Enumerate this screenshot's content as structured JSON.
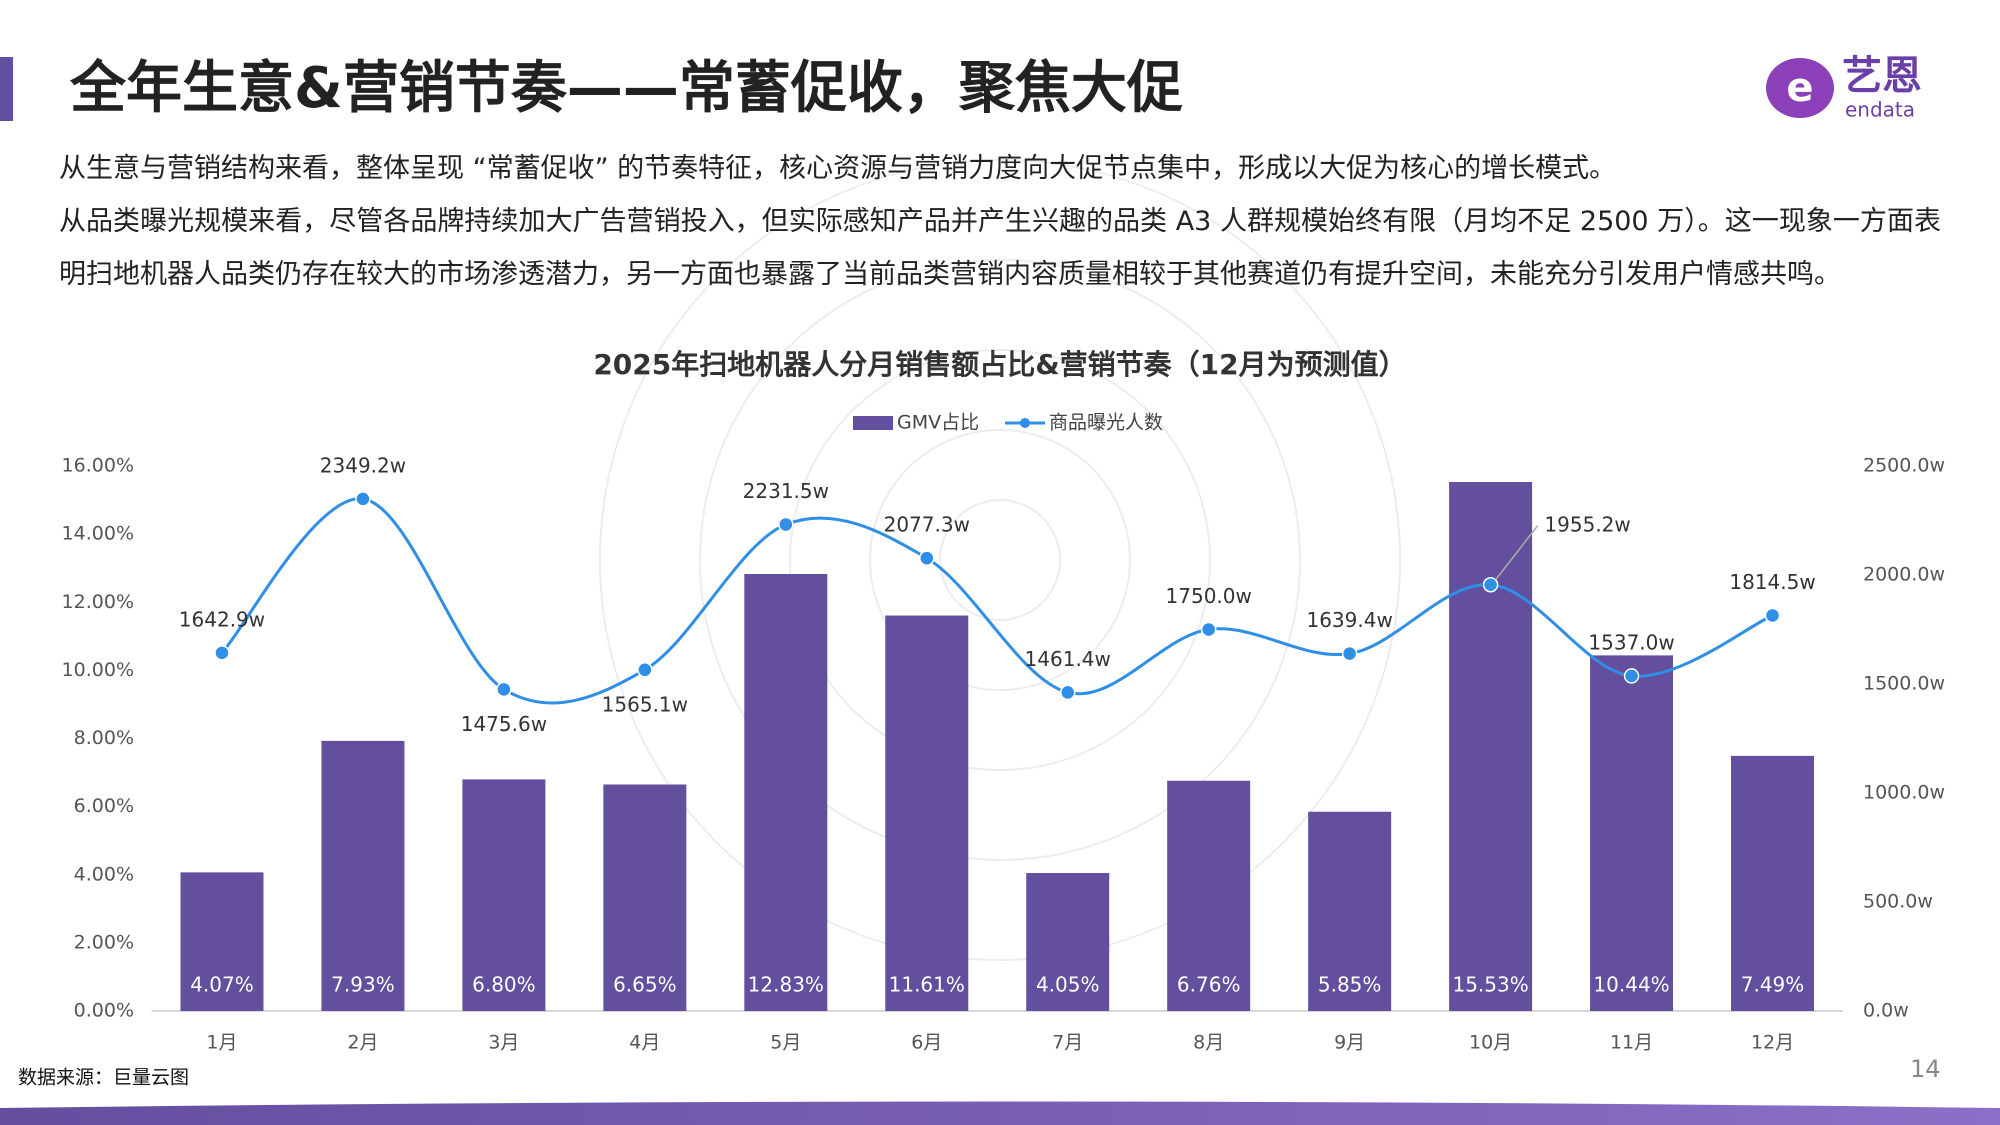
{
  "header": {
    "title": "全年生意&营销节奏——常蓄促收，聚焦大促",
    "logo_text": "艺恩",
    "logo_sub": "endata"
  },
  "paragraphs": [
    "从生意与营销结构来看，整体呈现 “常蓄促收” 的节奏特征，核心资源与营销力度向大促节点集中，形成以大促为核心的增长模式。",
    "从品类曝光规模来看，尽管各品牌持续加大广告营销投入，但实际感知产品并产生兴趣的品类 A3 人群规模始终有限（月均不足 2500 万）。这一现象一方面表明扫地机器人品类仍存在较大的市场渗透潜力，另一方面也暴露了当前品类营销内容质量相较于其他赛道仍有提升空间，未能充分引发用户情感共鸣。"
  ],
  "chart_data": {
    "type": "combo",
    "title": "2025年扫地机器人分月销售额占比&营销节奏（12月为预测值）",
    "categories": [
      "1月",
      "2月",
      "3月",
      "4月",
      "5月",
      "6月",
      "7月",
      "8月",
      "9月",
      "10月",
      "11月",
      "12月"
    ],
    "series": [
      {
        "name": "GMV占比",
        "type": "bar",
        "color": "#644e9e",
        "values": [
          4.07,
          7.93,
          6.8,
          6.65,
          12.83,
          11.61,
          4.05,
          6.76,
          5.85,
          15.53,
          10.44,
          7.49
        ],
        "value_labels": [
          "4.07%",
          "7.93%",
          "6.80%",
          "6.65%",
          "12.83%",
          "11.61%",
          "4.05%",
          "6.76%",
          "5.85%",
          "15.53%",
          "10.44%",
          "7.49%"
        ]
      },
      {
        "name": "商品曝光人数",
        "type": "line",
        "axis": "y2",
        "color": "#2f8ee6",
        "values": [
          1642.9,
          2349.2,
          1475.6,
          1565.1,
          2231.5,
          2077.3,
          1461.4,
          1750.0,
          1639.4,
          1955.2,
          1537.0,
          1814.5
        ],
        "value_labels": [
          "1642.9w",
          "2349.2w",
          "1475.6w",
          "1565.1w",
          "2231.5w",
          "2077.3w",
          "1461.4w",
          "1750.0w",
          "1639.4w",
          "1955.2w",
          "1537.0w",
          "1814.5w"
        ]
      }
    ],
    "ylim": [
      0,
      16
    ],
    "yticks": [
      {
        "value": 0,
        "label": "0.00%"
      },
      {
        "value": 2,
        "label": "2.00%"
      },
      {
        "value": 4,
        "label": "4.00%"
      },
      {
        "value": 6,
        "label": "6.00%"
      },
      {
        "value": 8,
        "label": "8.00%"
      },
      {
        "value": 10,
        "label": "10.00%"
      },
      {
        "value": 12,
        "label": "12.00%"
      },
      {
        "value": 14,
        "label": "14.00%"
      },
      {
        "value": 16,
        "label": "16.00%"
      }
    ],
    "y2lim": [
      0,
      2500
    ],
    "y2ticks": [
      {
        "value": 0,
        "label": "0.0w"
      },
      {
        "value": 500,
        "label": "500.0w"
      },
      {
        "value": 1000,
        "label": "1000.0w"
      },
      {
        "value": 1500,
        "label": "1500.0w"
      },
      {
        "value": 2000,
        "label": "2000.0w"
      },
      {
        "value": 2500,
        "label": "2500.0w"
      }
    ],
    "legend": "top",
    "grid": false
  },
  "source": "数据来源：巨量云图",
  "page_number": "14"
}
